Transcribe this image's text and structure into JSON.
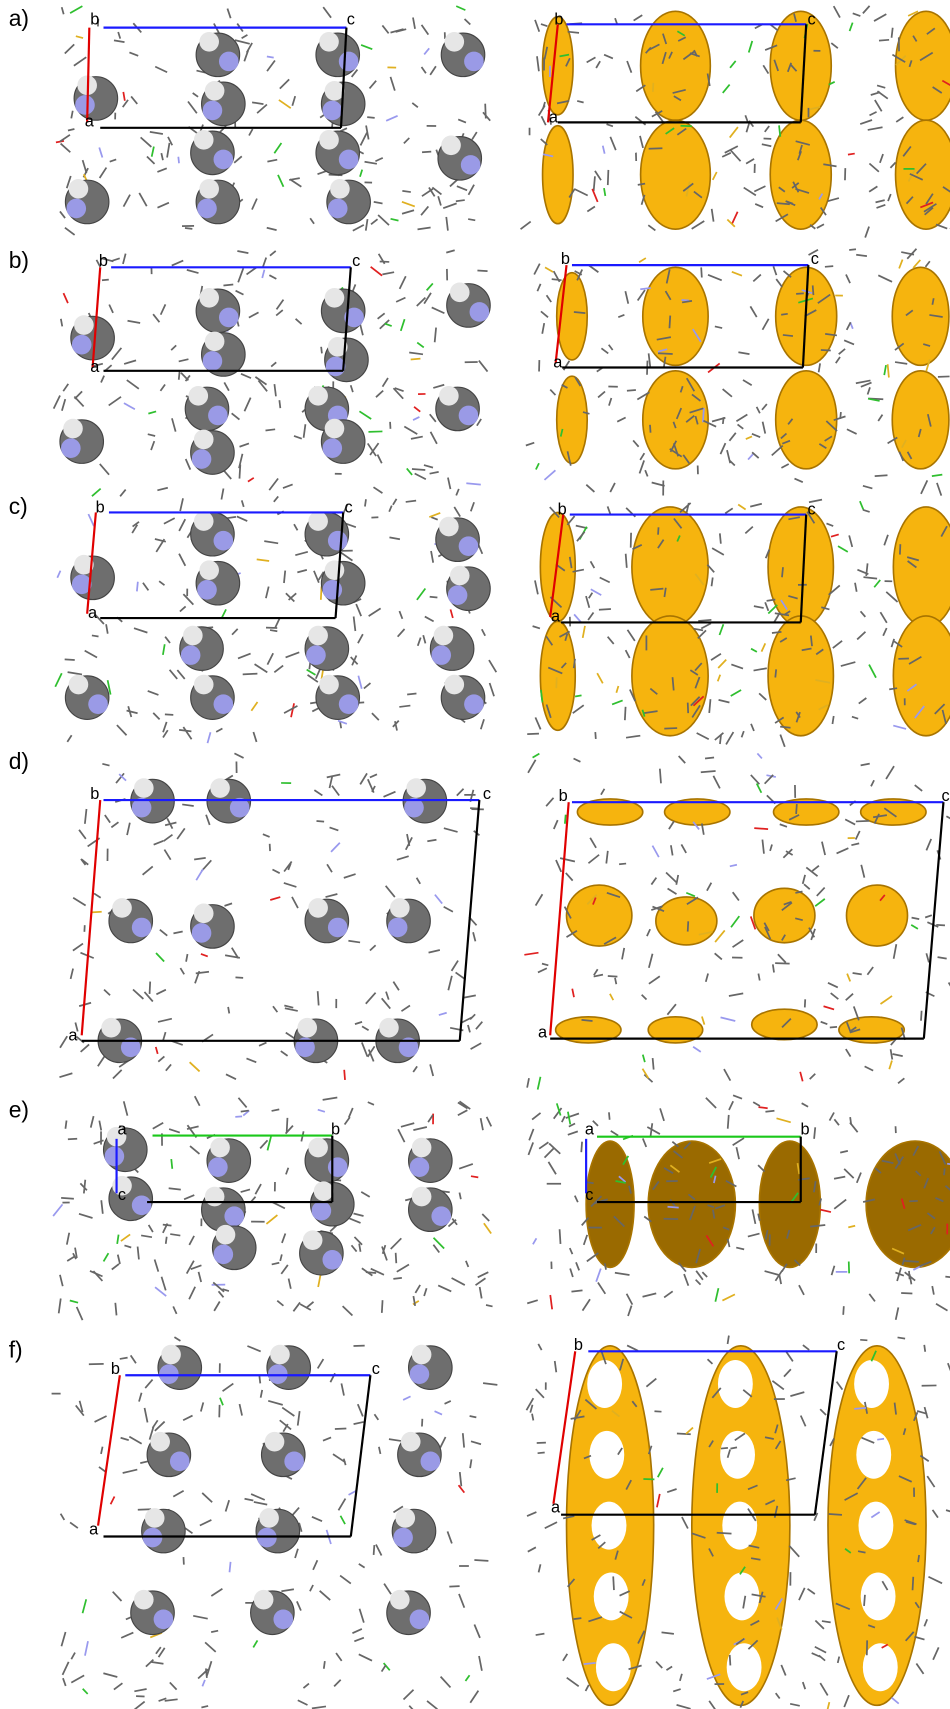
{
  "panels": [
    {
      "label": "a)",
      "left_axes": [
        "b",
        "c",
        "a"
      ],
      "right_axes": [
        "b",
        "c",
        "a"
      ]
    },
    {
      "label": "b)",
      "left_axes": [
        "b",
        "c",
        "a"
      ],
      "right_axes": [
        "b",
        "c",
        "a"
      ]
    },
    {
      "label": "c)",
      "left_axes": [
        "b",
        "c",
        "a"
      ],
      "right_axes": [
        "b",
        "c",
        "a"
      ]
    },
    {
      "label": "d)",
      "left_axes": [
        "b",
        "c",
        "a"
      ],
      "right_axes": [
        "b",
        "c",
        "a"
      ]
    },
    {
      "label": "e)",
      "left_axes": [
        "a",
        "b",
        "c"
      ],
      "right_axes": [
        "a",
        "b",
        "c"
      ]
    },
    {
      "label": "f)",
      "left_axes": [
        "b",
        "c",
        "a"
      ],
      "right_axes": [
        "b",
        "c",
        "a"
      ]
    }
  ]
}
